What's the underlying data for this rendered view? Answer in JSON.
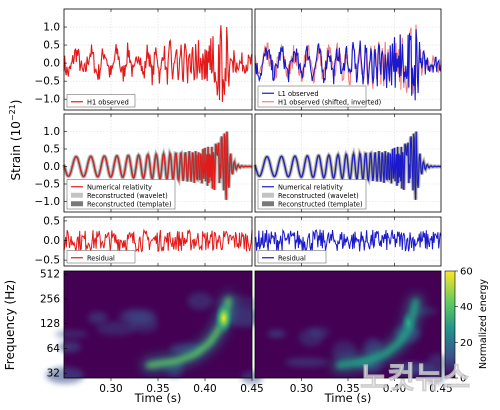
{
  "figure": {
    "y_label_upper": "Strain (10",
    "y_label_exp": "−21",
    "y_label_close": ")",
    "watermark": "노컷뉴스"
  },
  "chart_data": [
    {
      "id": "h1-observed",
      "type": "line",
      "panel": "row1-left",
      "xlim": [
        0.25,
        0.45
      ],
      "ylim": [
        -1.3,
        1.5
      ],
      "yticks": [
        "1.0",
        "0.5",
        "0.0",
        "−0.5",
        "−1.0"
      ],
      "ytick_values": [
        1.0,
        0.5,
        0.0,
        -0.5,
        -1.0
      ],
      "grid": true,
      "legend": "bottom-left",
      "series": [
        {
          "name": "H1 observed",
          "color": "#e21a1a",
          "style": "solid"
        }
      ]
    },
    {
      "id": "l1-observed",
      "type": "line",
      "panel": "row1-right",
      "xlim": [
        0.25,
        0.45
      ],
      "ylim": [
        -1.3,
        1.5
      ],
      "grid": true,
      "legend": "bottom-left",
      "series": [
        {
          "name": "L1 observed",
          "color": "#1a1acc",
          "style": "solid"
        },
        {
          "name": "H1 observed (shifted, inverted)",
          "color": "#f08080",
          "style": "solid"
        }
      ]
    },
    {
      "id": "h1-reconstructed",
      "type": "line",
      "panel": "row2-left",
      "xlim": [
        0.25,
        0.45
      ],
      "ylim": [
        -1.3,
        1.5
      ],
      "yticks": [
        "1.0",
        "0.5",
        "0.0",
        "−0.5",
        "−1.0"
      ],
      "ytick_values": [
        1.0,
        0.5,
        0.0,
        -0.5,
        -1.0
      ],
      "grid": true,
      "legend": "bottom-left",
      "series": [
        {
          "name": "Numerical relativity",
          "color": "#e21a1a"
        },
        {
          "name": "Reconstructed (wavelet)",
          "color": "#c4c4c4"
        },
        {
          "name": "Reconstructed (template)",
          "color": "#7a7a7a"
        }
      ]
    },
    {
      "id": "l1-reconstructed",
      "type": "line",
      "panel": "row2-right",
      "xlim": [
        0.25,
        0.45
      ],
      "ylim": [
        -1.3,
        1.5
      ],
      "grid": true,
      "legend": "bottom-left",
      "series": [
        {
          "name": "Numerical relativity",
          "color": "#1a1acc"
        },
        {
          "name": "Reconstructed (wavelet)",
          "color": "#c4c4c4"
        },
        {
          "name": "Reconstructed (template)",
          "color": "#7a7a7a"
        }
      ]
    },
    {
      "id": "h1-residual",
      "type": "line",
      "panel": "row3-left",
      "xlim": [
        0.25,
        0.45
      ],
      "ylim": [
        -0.65,
        0.6
      ],
      "yticks": [
        "0.5",
        "0.0",
        "−0.5"
      ],
      "ytick_values": [
        0.5,
        0.0,
        -0.5
      ],
      "grid": true,
      "legend": "bottom-left",
      "series": [
        {
          "name": "Residual",
          "color": "#e21a1a"
        }
      ]
    },
    {
      "id": "l1-residual",
      "type": "line",
      "panel": "row3-right",
      "xlim": [
        0.25,
        0.45
      ],
      "ylim": [
        -0.65,
        0.6
      ],
      "grid": true,
      "legend": "bottom-left",
      "series": [
        {
          "name": "Residual",
          "color": "#1a1acc"
        }
      ]
    },
    {
      "id": "h1-spectrogram",
      "type": "heatmap",
      "panel": "row4-left",
      "xlim": [
        0.25,
        0.45
      ],
      "ylim": [
        28,
        560
      ],
      "yscale": "log",
      "xlabel": "Time (s)",
      "ylabel": "Frequency (Hz)",
      "xticks": [
        "0.30",
        "0.35",
        "0.40",
        "0.45"
      ],
      "xtick_values": [
        0.3,
        0.35,
        0.4,
        0.45
      ],
      "yticks": [
        "512",
        "256",
        "128",
        "64",
        "32"
      ],
      "ytick_values": [
        512,
        256,
        128,
        64,
        32
      ],
      "chirp_peak": {
        "time": 0.42,
        "frequency": 150,
        "energy": 60
      },
      "track": [
        {
          "time": 0.34,
          "frequency": 40
        },
        {
          "time": 0.37,
          "frequency": 45
        },
        {
          "time": 0.39,
          "frequency": 55
        },
        {
          "time": 0.405,
          "frequency": 75
        },
        {
          "time": 0.415,
          "frequency": 110
        },
        {
          "time": 0.422,
          "frequency": 170
        },
        {
          "time": 0.425,
          "frequency": 250
        }
      ]
    },
    {
      "id": "l1-spectrogram",
      "type": "heatmap",
      "panel": "row4-right",
      "xlim": [
        0.25,
        0.45
      ],
      "ylim": [
        28,
        560
      ],
      "yscale": "log",
      "xlabel": "Time (s)",
      "xticks": [
        "0.30",
        "0.35",
        "0.40",
        "0.45"
      ],
      "xtick_values": [
        0.3,
        0.35,
        0.4,
        0.45
      ],
      "chirp_peak": {
        "time": 0.415,
        "frequency": 130,
        "energy": 35
      },
      "track": [
        {
          "time": 0.34,
          "frequency": 40
        },
        {
          "time": 0.37,
          "frequency": 45
        },
        {
          "time": 0.39,
          "frequency": 55
        },
        {
          "time": 0.405,
          "frequency": 75
        },
        {
          "time": 0.415,
          "frequency": 110
        },
        {
          "time": 0.42,
          "frequency": 170
        },
        {
          "time": 0.423,
          "frequency": 240
        }
      ]
    }
  ],
  "colorbar": {
    "label": "Normalized energy",
    "ticks": [
      "60",
      "40",
      "20",
      "0"
    ],
    "tick_values": [
      60,
      40,
      20,
      0
    ],
    "range": [
      0,
      60
    ],
    "colormap": [
      "#3b0f70",
      "#3e4a89",
      "#2a788e",
      "#22a884",
      "#7ad151",
      "#fde725"
    ]
  }
}
